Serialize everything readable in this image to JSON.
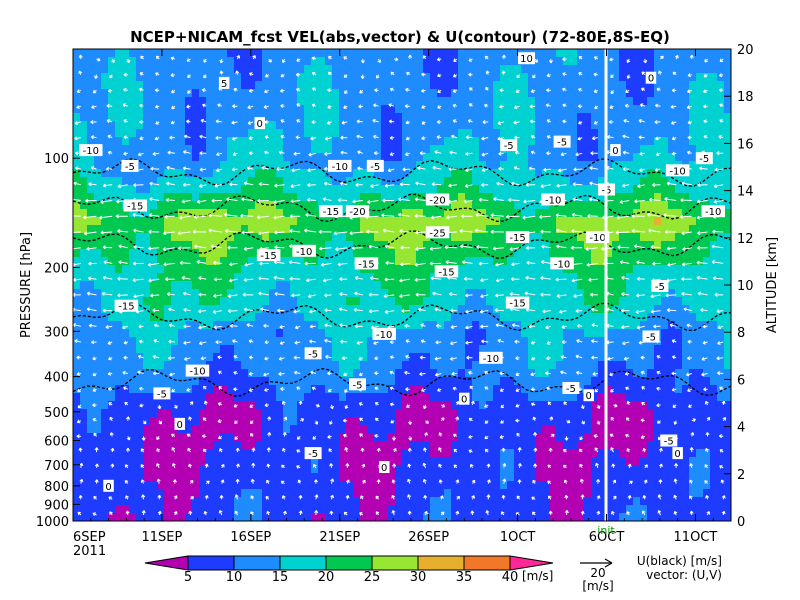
{
  "chart_data": {
    "type": "heatmap",
    "title": "NCEP+NICAM_fcst VEL(abs,vector) & U(contour)   (72-80E,8S-EQ)",
    "ylabel_left": "PRESSURE [hPa]",
    "ylabel_right": "ALTITUDE [km]",
    "x_ticks": [
      "6SEP",
      "11SEP",
      "16SEP",
      "21SEP",
      "26SEP",
      "1OCT",
      "6OCT",
      "11OCT"
    ],
    "x_year": "2011",
    "x_range_days": [
      0,
      37
    ],
    "init_day": 29.5,
    "init_label": "init",
    "pressure_ticks": [
      100,
      200,
      300,
      400,
      500,
      600,
      700,
      800,
      900,
      1000
    ],
    "pressure_range": [
      1000,
      50
    ],
    "altitude_ticks": [
      0,
      2,
      4,
      6,
      8,
      10,
      12,
      14,
      16,
      18,
      20
    ],
    "colorbar": {
      "levels": [
        5,
        10,
        15,
        20,
        25,
        30,
        35,
        40
      ],
      "colors": [
        "#b300b3",
        "#1e3cff",
        "#1e8cff",
        "#00d2d2",
        "#00c850",
        "#96e632",
        "#e6af2d",
        "#f07828",
        "#ff2896"
      ],
      "unit": "[m/s]"
    },
    "vector_ref": {
      "value": "20",
      "unit": "[m/s]"
    },
    "legend_contour": "U(black) [m/s]",
    "legend_vector": "vector: (U,V)",
    "layers": [
      {
        "pressure": 1000,
        "speed": 7,
        "u": -1
      },
      {
        "pressure": 800,
        "speed": 7,
        "u": 0
      },
      {
        "pressure": 600,
        "speed": 6,
        "u": -2
      },
      {
        "pressure": 500,
        "speed": 6,
        "u": 0
      },
      {
        "pressure": 400,
        "speed": 11,
        "u": -6
      },
      {
        "pressure": 300,
        "speed": 14,
        "u": -8
      },
      {
        "pressure": 250,
        "speed": 18,
        "u": -12
      },
      {
        "pressure": 200,
        "speed": 20,
        "u": -13
      },
      {
        "pressure": 150,
        "speed": 26,
        "u": -17
      },
      {
        "pressure": 120,
        "speed": 18,
        "u": -12
      },
      {
        "pressure": 100,
        "speed": 14,
        "u": -8
      },
      {
        "pressure": 70,
        "speed": 13,
        "u": -5
      },
      {
        "pressure": 50,
        "speed": 12,
        "u": 0
      }
    ],
    "contour_labels": [
      {
        "day": 8.5,
        "pressure": 62,
        "text": "5"
      },
      {
        "day": 10.5,
        "pressure": 80,
        "text": "0"
      },
      {
        "day": 1.0,
        "pressure": 95,
        "text": "-10"
      },
      {
        "day": 3.2,
        "pressure": 105,
        "text": "-5"
      },
      {
        "day": 15.0,
        "pressure": 105,
        "text": "-10"
      },
      {
        "day": 17.0,
        "pressure": 105,
        "text": "-5"
      },
      {
        "day": 24.5,
        "pressure": 92,
        "text": "-5"
      },
      {
        "day": 27.5,
        "pressure": 90,
        "text": "-5"
      },
      {
        "day": 30.5,
        "pressure": 95,
        "text": "0"
      },
      {
        "day": 34.0,
        "pressure": 108,
        "text": "-10"
      },
      {
        "day": 35.5,
        "pressure": 100,
        "text": "-5"
      },
      {
        "day": 25.5,
        "pressure": 53,
        "text": "10"
      },
      {
        "day": 32.5,
        "pressure": 60,
        "text": "0"
      },
      {
        "day": 42.5,
        "pressure": 60,
        "text": "10"
      },
      {
        "day": 44.5,
        "pressure": 88,
        "text": "10"
      },
      {
        "day": 3.5,
        "pressure": 135,
        "text": "-15"
      },
      {
        "day": 14.5,
        "pressure": 140,
        "text": "-15"
      },
      {
        "day": 16.0,
        "pressure": 140,
        "text": "-20"
      },
      {
        "day": 20.5,
        "pressure": 130,
        "text": "-20"
      },
      {
        "day": 20.5,
        "pressure": 160,
        "text": "-25"
      },
      {
        "day": 27.0,
        "pressure": 130,
        "text": "-10"
      },
      {
        "day": 30.0,
        "pressure": 122,
        "text": "-5"
      },
      {
        "day": 25.0,
        "pressure": 165,
        "text": "-15"
      },
      {
        "day": 29.5,
        "pressure": 165,
        "text": "-10"
      },
      {
        "day": 36.0,
        "pressure": 140,
        "text": "-10"
      },
      {
        "day": 39.0,
        "pressure": 150,
        "text": "-5"
      },
      {
        "day": 11.0,
        "pressure": 185,
        "text": "-15"
      },
      {
        "day": 13.0,
        "pressure": 180,
        "text": "-10"
      },
      {
        "day": 16.5,
        "pressure": 195,
        "text": "-15"
      },
      {
        "day": 21.0,
        "pressure": 205,
        "text": "-15"
      },
      {
        "day": 27.5,
        "pressure": 195,
        "text": "-10"
      },
      {
        "day": 33.0,
        "pressure": 225,
        "text": "-5"
      },
      {
        "day": 3.0,
        "pressure": 255,
        "text": "-15"
      },
      {
        "day": 25.0,
        "pressure": 250,
        "text": "-15"
      },
      {
        "day": 17.5,
        "pressure": 305,
        "text": "-10"
      },
      {
        "day": 32.5,
        "pressure": 310,
        "text": "-5"
      },
      {
        "day": 13.5,
        "pressure": 345,
        "text": "-5"
      },
      {
        "day": 7.0,
        "pressure": 385,
        "text": "-10"
      },
      {
        "day": 23.5,
        "pressure": 355,
        "text": "-10"
      },
      {
        "day": 5.0,
        "pressure": 445,
        "text": "-5"
      },
      {
        "day": 16.0,
        "pressure": 420,
        "text": "-5"
      },
      {
        "day": 28.0,
        "pressure": 430,
        "text": "-5"
      },
      {
        "day": 22.0,
        "pressure": 460,
        "text": "0"
      },
      {
        "day": 29.0,
        "pressure": 450,
        "text": "0"
      },
      {
        "day": 6.0,
        "pressure": 540,
        "text": "0"
      },
      {
        "day": 33.5,
        "pressure": 600,
        "text": "-5"
      },
      {
        "day": 13.5,
        "pressure": 650,
        "text": "-5"
      },
      {
        "day": 34.0,
        "pressure": 650,
        "text": "0"
      },
      {
        "day": 17.5,
        "pressure": 710,
        "text": "0"
      },
      {
        "day": 2.0,
        "pressure": 800,
        "text": "0"
      },
      {
        "day": 44.5,
        "pressure": 870,
        "text": "0"
      }
    ]
  }
}
